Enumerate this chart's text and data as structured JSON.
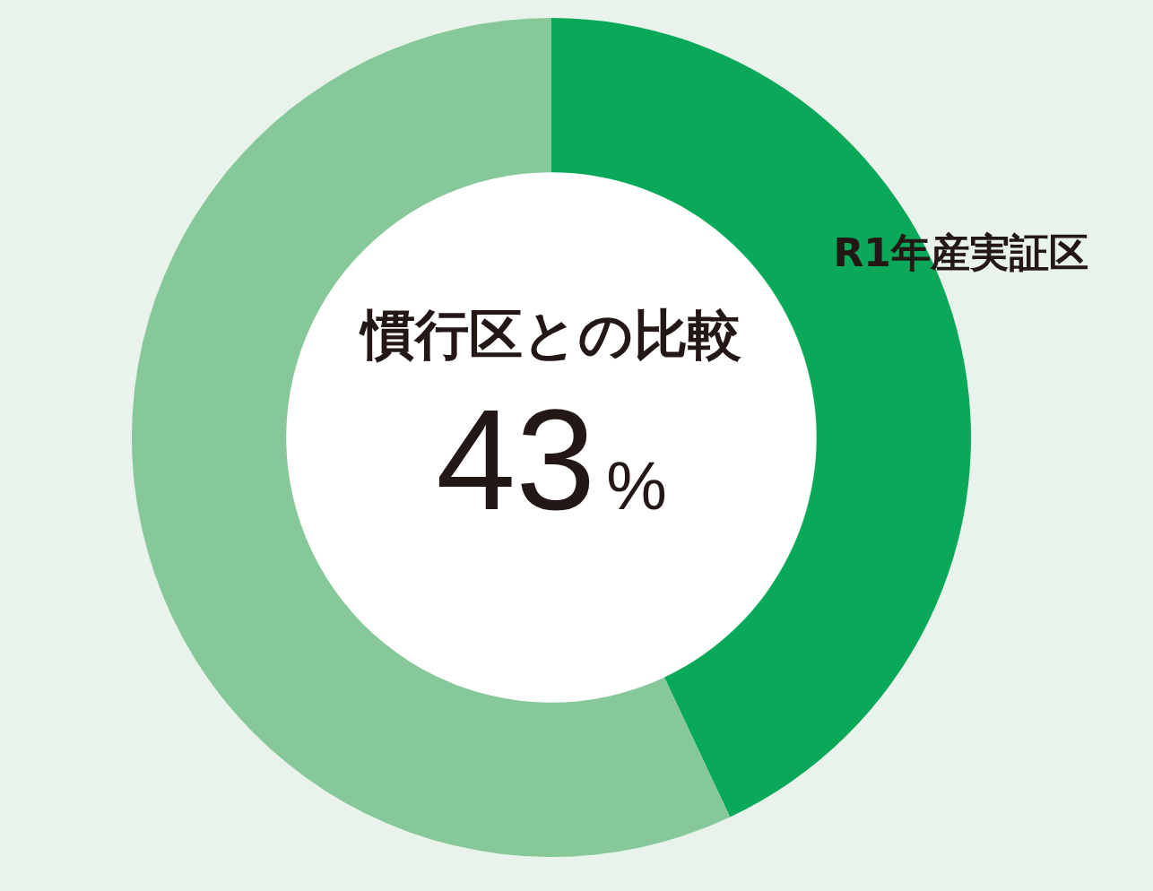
{
  "chart_data": {
    "type": "donut",
    "categories": [
      "R1年産実証区",
      null
    ],
    "values": [
      43,
      57
    ],
    "colors": [
      "#0aa95a",
      "#86c899"
    ],
    "annotations": [
      "慣行区との比較",
      "43%"
    ]
  }
}
